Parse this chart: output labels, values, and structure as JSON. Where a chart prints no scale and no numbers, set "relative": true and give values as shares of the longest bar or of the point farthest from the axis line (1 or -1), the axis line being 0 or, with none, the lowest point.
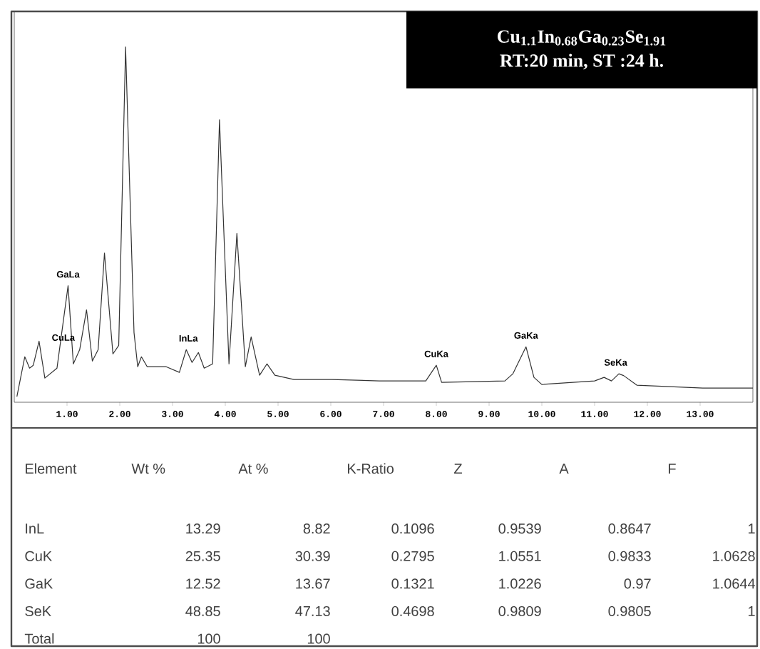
{
  "chart_data": {
    "type": "line",
    "title": "Cu$_{1.1}$In$_{0.68}$Ga$_{0.23}$Se$_{1.91}$",
    "subtitle": "RT:20 min, ST :24 h.",
    "relative": true,
    "color": "#333333",
    "xlim": [
      0,
      14
    ],
    "xticks": [
      {
        "value": 1,
        "label": "1.00"
      },
      {
        "value": 2,
        "label": "2.00"
      },
      {
        "value": 3,
        "label": "3.00"
      },
      {
        "value": 4,
        "label": "4.00"
      },
      {
        "value": 5,
        "label": "5.00"
      },
      {
        "value": 6,
        "label": "6.00"
      },
      {
        "value": 7,
        "label": "7.00"
      },
      {
        "value": 8,
        "label": "8.00"
      },
      {
        "value": 9,
        "label": "9.00"
      },
      {
        "value": 10,
        "label": "10.00"
      },
      {
        "value": 11,
        "label": "11.00"
      },
      {
        "value": 12,
        "label": "12.00"
      },
      {
        "value": 13,
        "label": "13.00"
      }
    ],
    "x": [
      0.05,
      0.13,
      0.2,
      0.29,
      0.36,
      0.47,
      0.58,
      0.81,
      1.02,
      1.12,
      1.24,
      1.37,
      1.48,
      1.59,
      1.71,
      1.87,
      1.98,
      2.11,
      2.27,
      2.34,
      2.41,
      2.52,
      2.88,
      3.13,
      3.26,
      3.37,
      3.49,
      3.6,
      3.76,
      3.89,
      4.07,
      4.22,
      4.38,
      4.49,
      4.65,
      4.79,
      4.94,
      5.3,
      6.02,
      6.92,
      7.8,
      8.0,
      8.1,
      9.3,
      9.45,
      9.7,
      9.85,
      10.0,
      11.0,
      11.18,
      11.32,
      11.46,
      11.55,
      11.8,
      13.05,
      14.0
    ],
    "values": [
      0.016,
      0.076,
      0.128,
      0.096,
      0.104,
      0.172,
      0.068,
      0.096,
      0.328,
      0.108,
      0.148,
      0.26,
      0.116,
      0.148,
      0.42,
      0.136,
      0.16,
      1.0,
      0.196,
      0.1,
      0.128,
      0.1,
      0.1,
      0.084,
      0.148,
      0.112,
      0.14,
      0.096,
      0.108,
      0.795,
      0.108,
      0.475,
      0.1,
      0.184,
      0.076,
      0.108,
      0.076,
      0.064,
      0.064,
      0.06,
      0.06,
      0.104,
      0.056,
      0.06,
      0.08,
      0.156,
      0.07,
      0.05,
      0.06,
      0.07,
      0.06,
      0.08,
      0.075,
      0.048,
      0.04,
      0.04
    ],
    "annotations": [
      {
        "text": "GaLa",
        "x": 1.02,
        "y": 0.328
      },
      {
        "text": "CuLa",
        "x": 0.93,
        "y": 0.15
      },
      {
        "text": "InLa",
        "x": 3.3,
        "y": 0.148
      },
      {
        "text": "CuKa",
        "x": 8.0,
        "y": 0.104
      },
      {
        "text": "GaKa",
        "x": 9.7,
        "y": 0.156
      },
      {
        "text": "SeKa",
        "x": 11.4,
        "y": 0.08
      },
      "Element",
      "Wt %",
      "At %",
      "K-Ratio",
      "Z",
      "A",
      "F",
      "InL",
      "13.29",
      "8.82",
      "0.1096",
      "0.9539",
      "0.8647",
      "1",
      "CuK",
      "25.35",
      "30.39",
      "0.2795",
      "1.0551",
      "0.9833",
      "1.0628",
      "GaK",
      "12.52",
      "13.67",
      "0.1321",
      "1.0226",
      "0.97",
      "1.0644",
      "SeK",
      "48.85",
      "47.13",
      "0.4698",
      "0.9809",
      "0.9805",
      "1",
      "Total",
      "100",
      "100"
    ]
  }
}
